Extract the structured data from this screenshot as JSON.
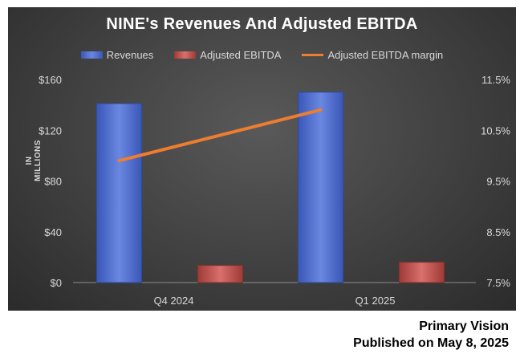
{
  "chart_data": {
    "type": "bar",
    "title": "NINE's Revenues And Adjusted EBITDA",
    "categories": [
      "Q4 2024",
      "Q1 2025"
    ],
    "series": [
      {
        "name": "Revenues",
        "kind": "bar",
        "axis": "left",
        "color": "#4f6fd1",
        "values": [
          141,
          150
        ]
      },
      {
        "name": "Adjusted EBITDA",
        "kind": "bar",
        "axis": "left",
        "color": "#c0504d",
        "values": [
          13.5,
          16
        ]
      },
      {
        "name": "Adjusted EBITDA margin",
        "kind": "line",
        "axis": "right",
        "color": "#ed7d31",
        "values": [
          9.9,
          10.9
        ]
      }
    ],
    "ylabel": "IN MILLIONS",
    "ylim": [
      0,
      160
    ],
    "y_ticks": [
      "$0",
      "$40",
      "$80",
      "$120",
      "$160"
    ],
    "y_tick_values": [
      0,
      40,
      80,
      120,
      160
    ],
    "y2lim": [
      7.5,
      11.5
    ],
    "y2_ticks": [
      "7.5%",
      "8.5%",
      "9.5%",
      "10.5%",
      "11.5%"
    ],
    "y2_tick_values": [
      7.5,
      8.5,
      9.5,
      10.5,
      11.5
    ],
    "legend_position": "top",
    "grid": false
  },
  "credits": {
    "line1": "Primary Vision",
    "line2": "Published on May 8, 2025"
  }
}
